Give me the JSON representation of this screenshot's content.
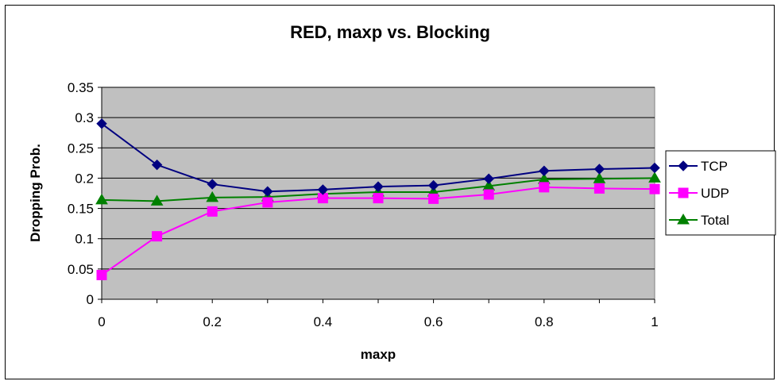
{
  "chart_data": {
    "type": "line",
    "title": "RED, maxp vs. Blocking",
    "xlabel": "maxp",
    "ylabel": "Dropping Prob.",
    "x": [
      0,
      0.1,
      0.2,
      0.3,
      0.4,
      0.5,
      0.6,
      0.7,
      0.8,
      0.9,
      1
    ],
    "xticks": [
      "0",
      "0.2",
      "0.4",
      "0.6",
      "0.8",
      "1"
    ],
    "xtick_values": [
      0,
      0.2,
      0.4,
      0.6,
      0.8,
      1
    ],
    "yticks": [
      "0",
      "0.05",
      "0.1",
      "0.15",
      "0.2",
      "0.25",
      "0.3",
      "0.35"
    ],
    "ytick_values": [
      0,
      0.05,
      0.1,
      0.15,
      0.2,
      0.25,
      0.3,
      0.35
    ],
    "xlim": [
      0,
      1
    ],
    "ylim": [
      0,
      0.35
    ],
    "grid": "horizontal",
    "plot_background": "#c0c0c0",
    "legend_position": "right",
    "series": [
      {
        "name": "TCP",
        "color": "#000080",
        "marker": "diamond",
        "values": [
          0.29,
          0.222,
          0.19,
          0.178,
          0.181,
          0.186,
          0.188,
          0.199,
          0.212,
          0.215,
          0.217
        ]
      },
      {
        "name": "UDP",
        "color": "#ff00ff",
        "marker": "square",
        "values": [
          0.04,
          0.104,
          0.145,
          0.16,
          0.167,
          0.167,
          0.166,
          0.173,
          0.185,
          0.183,
          0.182
        ]
      },
      {
        "name": "Total",
        "color": "#008000",
        "marker": "triangle",
        "values": [
          0.164,
          0.162,
          0.168,
          0.169,
          0.174,
          0.177,
          0.177,
          0.187,
          0.198,
          0.199,
          0.2
        ]
      }
    ]
  }
}
